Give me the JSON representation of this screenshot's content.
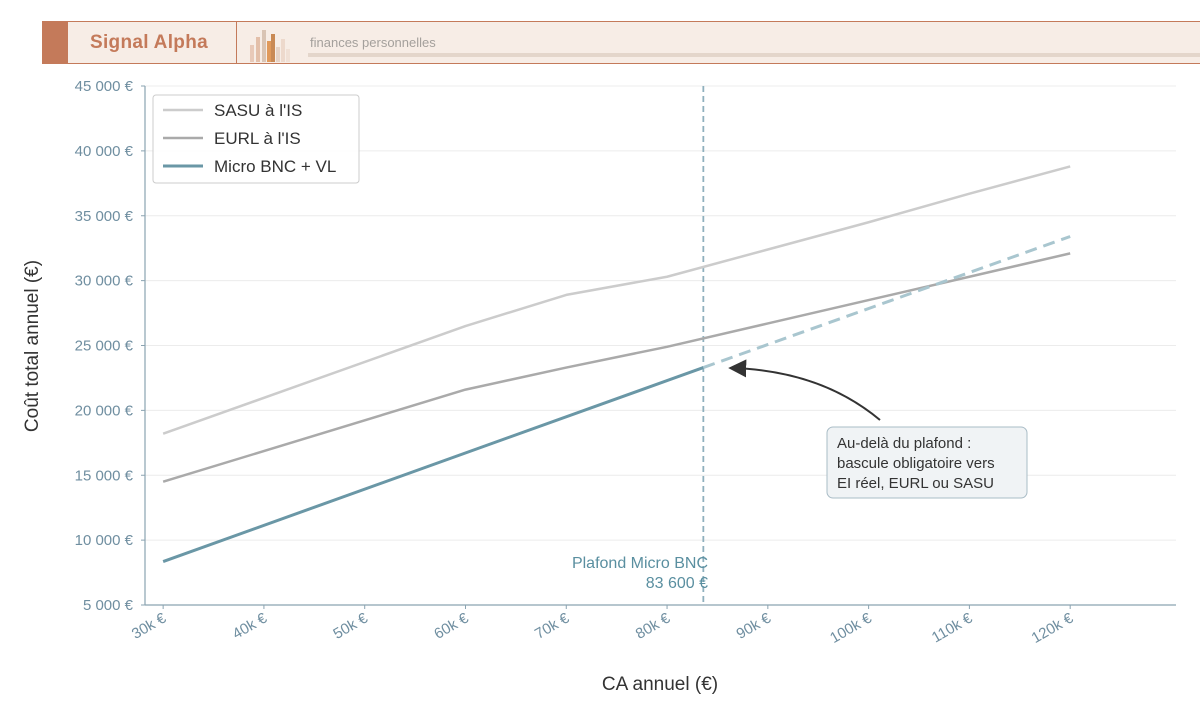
{
  "header": {
    "brand": "Signal Alpha",
    "tagline": "finances personnelles",
    "colors": {
      "accent": "#c47a5a",
      "background": "#f7ede6"
    }
  },
  "chart_data": {
    "type": "line",
    "xlabel": "CA annuel (€)",
    "ylabel": "Coût total annuel (€)",
    "xlim": [
      28200,
      130500
    ],
    "ylim": [
      5000,
      45000
    ],
    "x_ticks": [
      30000,
      40000,
      50000,
      60000,
      70000,
      80000,
      90000,
      100000,
      110000,
      120000
    ],
    "x_tick_labels": [
      "30k €",
      "40k €",
      "50k €",
      "60k €",
      "70k €",
      "80k €",
      "90k €",
      "100k €",
      "110k €",
      "120k €"
    ],
    "y_ticks": [
      5000,
      10000,
      15000,
      20000,
      25000,
      30000,
      35000,
      40000,
      45000
    ],
    "y_tick_labels": [
      "5 000 €",
      "10 000 €",
      "15 000 €",
      "20 000 €",
      "25 000 €",
      "30 000 €",
      "35 000 €",
      "40 000 €",
      "45 000 €"
    ],
    "grid": true,
    "legend_position": "top-left",
    "series": [
      {
        "name": "SASU à l'IS",
        "color": "#cccccc",
        "x": [
          30000,
          60000,
          70000,
          80000,
          90000,
          100000,
          110000,
          120000
        ],
        "y": [
          18200,
          26500,
          28900,
          30300,
          32400,
          34500,
          36700,
          38800
        ]
      },
      {
        "name": "EURL à l'IS",
        "color": "#aaaaaa",
        "x": [
          30000,
          60000,
          70000,
          80000,
          90000,
          100000,
          110000,
          120000
        ],
        "y": [
          14500,
          21600,
          23300,
          24900,
          26700,
          28500,
          30300,
          32100
        ]
      },
      {
        "name": "Micro BNC + VL",
        "color": "#6a97a6",
        "x": [
          30000,
          83600
        ],
        "y": [
          8350,
          23300
        ],
        "extrapolated": {
          "x": [
            83600,
            120000
          ],
          "y": [
            23300,
            33400
          ],
          "color": "#a9c6cf"
        }
      }
    ],
    "threshold": {
      "x": 83600,
      "label_line1": "Plafond Micro BNC",
      "label_line2": "83 600 €",
      "color": "#8fb0bd"
    },
    "annotation": {
      "lines": [
        "Au-delà du plafond :",
        "bascule obligatoire vers",
        "EI réel, EURL ou SASU"
      ],
      "target": {
        "x": 83600,
        "y": 23300
      }
    }
  }
}
